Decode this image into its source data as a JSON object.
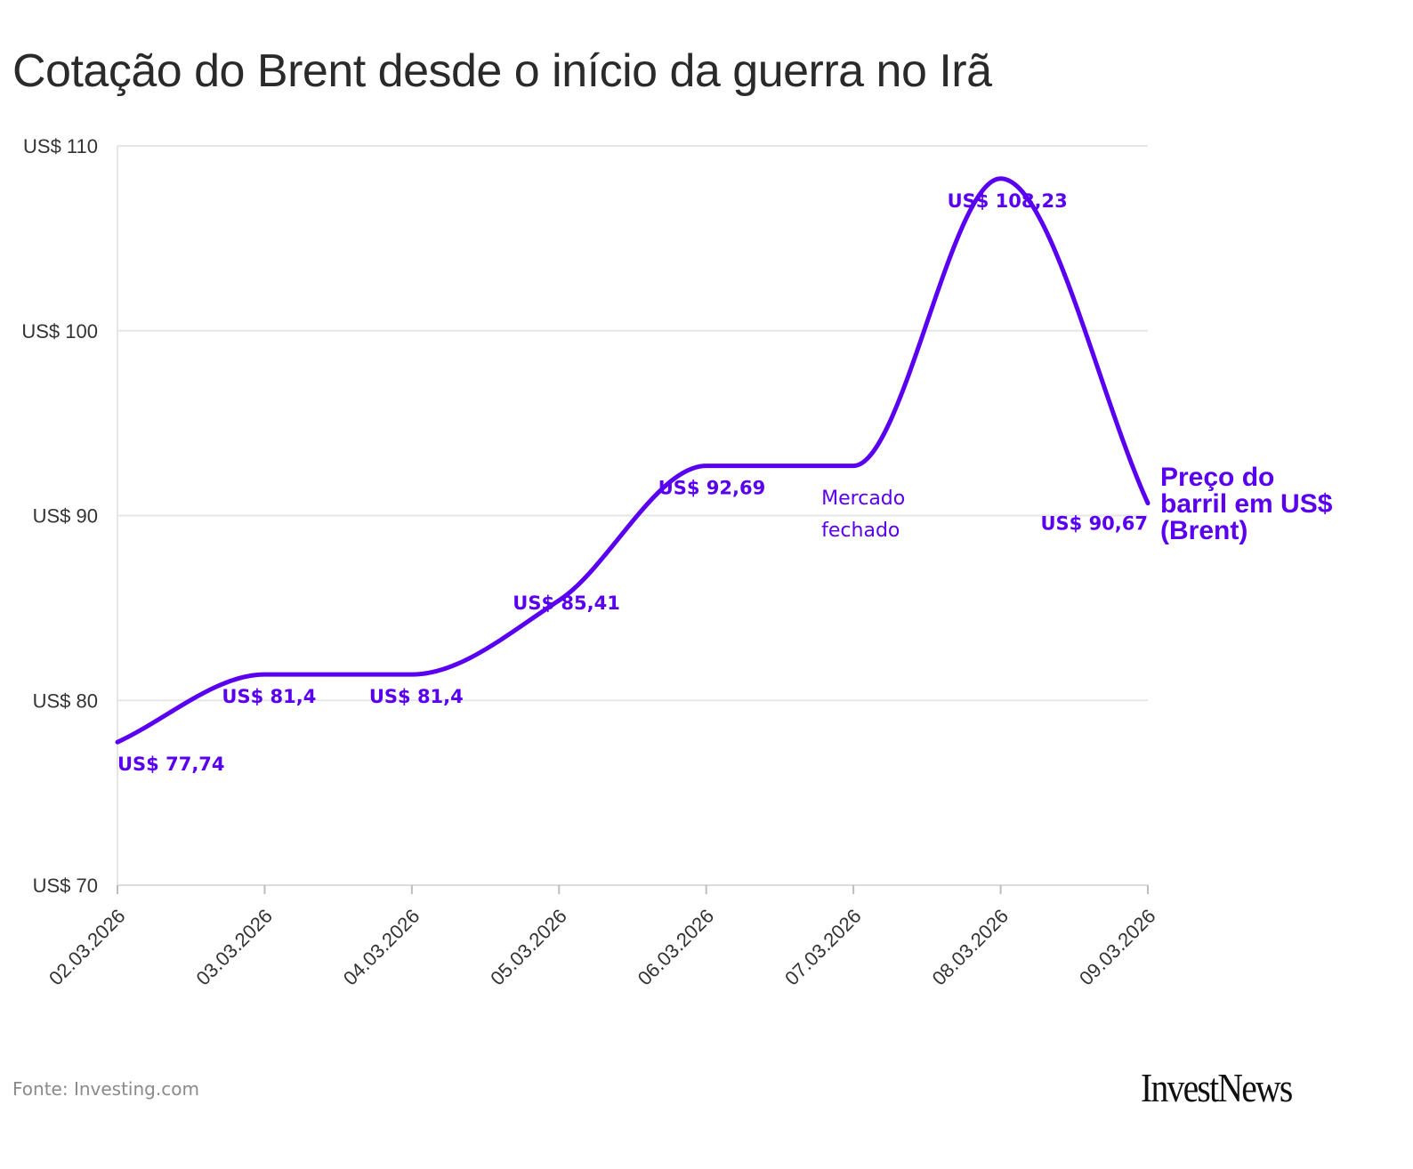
{
  "chart_data": {
    "type": "line",
    "title": "Cotação do Brent desde o início da guerra no Irã",
    "xlabel": "",
    "ylabel": "",
    "categories": [
      "02.03.2026",
      "03.03.2026",
      "04.03.2026",
      "05.03.2026",
      "06.03.2026",
      "07.03.2026",
      "08.03.2026",
      "09.03.2026"
    ],
    "series": [
      {
        "name": "Preço do barril em US$ (Brent)",
        "name_lines": [
          "Preço do",
          "barril em US$",
          "(Brent)"
        ],
        "values": [
          77.74,
          81.4,
          81.4,
          85.41,
          92.69,
          92.69,
          108.23,
          90.67
        ],
        "data_labels": [
          "US$ 77,74",
          "US$ 81,4",
          "US$ 81,4",
          "US$ 85,41",
          "US$ 92,69",
          "",
          "US$ 108,23",
          "US$ 90,67"
        ],
        "color": "#5a00f0"
      }
    ],
    "ylim": [
      70,
      110
    ],
    "yticks": [
      110,
      100,
      90,
      80,
      70
    ],
    "ytick_labels": [
      "US$ 110",
      "US$ 100",
      "US$ 90",
      "US$ 80",
      "US$ 70"
    ],
    "annotations": [
      {
        "category": "07.03.2026",
        "lines": [
          "Mercado",
          "fechado"
        ]
      }
    ],
    "grid": true
  },
  "footer": {
    "source": "Fonte: Investing.com",
    "logo": "InvestNews"
  }
}
